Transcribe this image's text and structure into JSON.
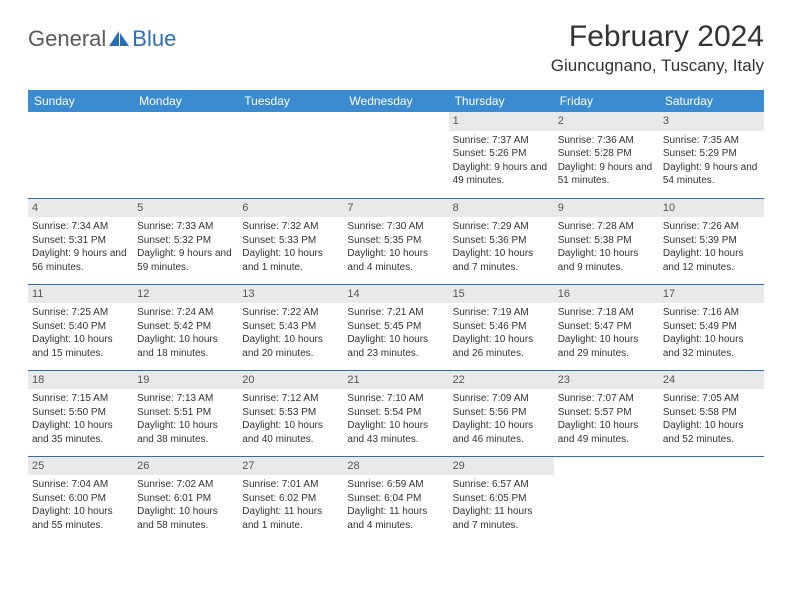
{
  "logo": {
    "part1": "General",
    "part2": "Blue"
  },
  "title": "February 2024",
  "location": "Giuncugnano, Tuscany, Italy",
  "colors": {
    "header_bg": "#3b8bd0",
    "header_text": "#ffffff",
    "accent": "#2a6fb5",
    "daynum_bg": "#e9e9e9",
    "text": "#333333",
    "logo_gray": "#5a5a5a"
  },
  "day_headers": [
    "Sunday",
    "Monday",
    "Tuesday",
    "Wednesday",
    "Thursday",
    "Friday",
    "Saturday"
  ],
  "weeks": [
    [
      null,
      null,
      null,
      null,
      {
        "n": "1",
        "sr": "7:37 AM",
        "ss": "5:26 PM",
        "dl": "9 hours and 49 minutes."
      },
      {
        "n": "2",
        "sr": "7:36 AM",
        "ss": "5:28 PM",
        "dl": "9 hours and 51 minutes."
      },
      {
        "n": "3",
        "sr": "7:35 AM",
        "ss": "5:29 PM",
        "dl": "9 hours and 54 minutes."
      }
    ],
    [
      {
        "n": "4",
        "sr": "7:34 AM",
        "ss": "5:31 PM",
        "dl": "9 hours and 56 minutes."
      },
      {
        "n": "5",
        "sr": "7:33 AM",
        "ss": "5:32 PM",
        "dl": "9 hours and 59 minutes."
      },
      {
        "n": "6",
        "sr": "7:32 AM",
        "ss": "5:33 PM",
        "dl": "10 hours and 1 minute."
      },
      {
        "n": "7",
        "sr": "7:30 AM",
        "ss": "5:35 PM",
        "dl": "10 hours and 4 minutes."
      },
      {
        "n": "8",
        "sr": "7:29 AM",
        "ss": "5:36 PM",
        "dl": "10 hours and 7 minutes."
      },
      {
        "n": "9",
        "sr": "7:28 AM",
        "ss": "5:38 PM",
        "dl": "10 hours and 9 minutes."
      },
      {
        "n": "10",
        "sr": "7:26 AM",
        "ss": "5:39 PM",
        "dl": "10 hours and 12 minutes."
      }
    ],
    [
      {
        "n": "11",
        "sr": "7:25 AM",
        "ss": "5:40 PM",
        "dl": "10 hours and 15 minutes."
      },
      {
        "n": "12",
        "sr": "7:24 AM",
        "ss": "5:42 PM",
        "dl": "10 hours and 18 minutes."
      },
      {
        "n": "13",
        "sr": "7:22 AM",
        "ss": "5:43 PM",
        "dl": "10 hours and 20 minutes."
      },
      {
        "n": "14",
        "sr": "7:21 AM",
        "ss": "5:45 PM",
        "dl": "10 hours and 23 minutes."
      },
      {
        "n": "15",
        "sr": "7:19 AM",
        "ss": "5:46 PM",
        "dl": "10 hours and 26 minutes."
      },
      {
        "n": "16",
        "sr": "7:18 AM",
        "ss": "5:47 PM",
        "dl": "10 hours and 29 minutes."
      },
      {
        "n": "17",
        "sr": "7:16 AM",
        "ss": "5:49 PM",
        "dl": "10 hours and 32 minutes."
      }
    ],
    [
      {
        "n": "18",
        "sr": "7:15 AM",
        "ss": "5:50 PM",
        "dl": "10 hours and 35 minutes."
      },
      {
        "n": "19",
        "sr": "7:13 AM",
        "ss": "5:51 PM",
        "dl": "10 hours and 38 minutes."
      },
      {
        "n": "20",
        "sr": "7:12 AM",
        "ss": "5:53 PM",
        "dl": "10 hours and 40 minutes."
      },
      {
        "n": "21",
        "sr": "7:10 AM",
        "ss": "5:54 PM",
        "dl": "10 hours and 43 minutes."
      },
      {
        "n": "22",
        "sr": "7:09 AM",
        "ss": "5:56 PM",
        "dl": "10 hours and 46 minutes."
      },
      {
        "n": "23",
        "sr": "7:07 AM",
        "ss": "5:57 PM",
        "dl": "10 hours and 49 minutes."
      },
      {
        "n": "24",
        "sr": "7:05 AM",
        "ss": "5:58 PM",
        "dl": "10 hours and 52 minutes."
      }
    ],
    [
      {
        "n": "25",
        "sr": "7:04 AM",
        "ss": "6:00 PM",
        "dl": "10 hours and 55 minutes."
      },
      {
        "n": "26",
        "sr": "7:02 AM",
        "ss": "6:01 PM",
        "dl": "10 hours and 58 minutes."
      },
      {
        "n": "27",
        "sr": "7:01 AM",
        "ss": "6:02 PM",
        "dl": "11 hours and 1 minute."
      },
      {
        "n": "28",
        "sr": "6:59 AM",
        "ss": "6:04 PM",
        "dl": "11 hours and 4 minutes."
      },
      {
        "n": "29",
        "sr": "6:57 AM",
        "ss": "6:05 PM",
        "dl": "11 hours and 7 minutes."
      },
      null,
      null
    ]
  ],
  "labels": {
    "sunrise": "Sunrise:",
    "sunset": "Sunset:",
    "daylight": "Daylight:"
  }
}
